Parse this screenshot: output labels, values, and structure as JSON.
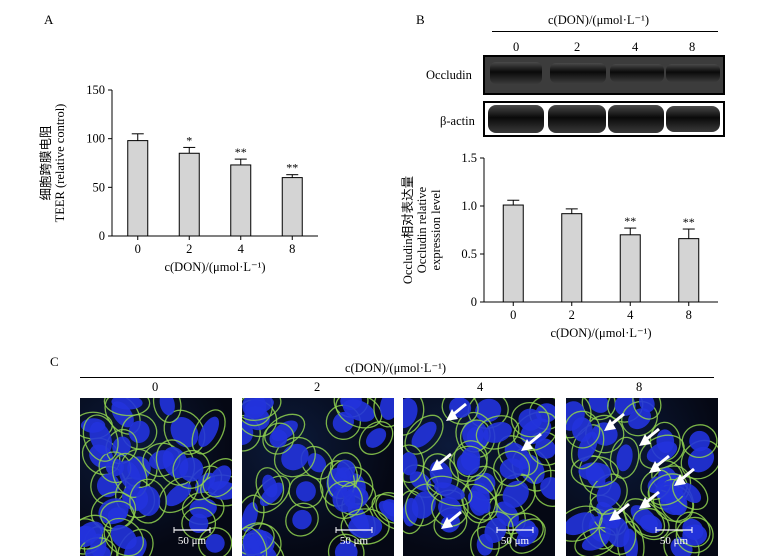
{
  "panel_a": {
    "letter": "A",
    "ylabel_cn": "细胞跨膜电阻",
    "ylabel_en": "TEER (relative control)",
    "xlabel": "c(DON)/(μmol·L⁻¹)"
  },
  "panel_b": {
    "letter": "B",
    "header": "c(DON)/(μmol·L⁻¹)",
    "doses": [
      "0",
      "2",
      "4",
      "8"
    ],
    "blot_rows": [
      "Occludin",
      "β-actin"
    ],
    "ylabel_cn": "Occludin相对表达量",
    "ylabel_en_1": "Occludin relative",
    "ylabel_en_2": "expression level",
    "xlabel": "c(DON)/(μmol·L⁻¹)"
  },
  "panel_c": {
    "letter": "C",
    "header": "c(DON)/(μmol·L⁻¹)",
    "doses": [
      "0",
      "2",
      "4",
      "8"
    ],
    "scale_bar": "50 μm"
  },
  "colors": {
    "bar_fill": "#d4d4d4",
    "axis": "#000000",
    "membrane": "#8fd14f",
    "nuclei": "#2233dd",
    "arrow": "#ffffff"
  },
  "chart_data": [
    {
      "type": "bar",
      "panel": "A",
      "categories": [
        "0",
        "2",
        "4",
        "8"
      ],
      "values": [
        98,
        85,
        73,
        60
      ],
      "errors": [
        7,
        6,
        6,
        3
      ],
      "annotations": [
        "",
        "*",
        "**",
        "**"
      ],
      "ylim": [
        0,
        150
      ],
      "yticks": [
        "0",
        "50",
        "100",
        "150"
      ],
      "xlabel": "c(DON)/(μmol·L⁻¹)",
      "ylabel": "细胞跨膜电阻 TEER (relative control)"
    },
    {
      "type": "bar",
      "panel": "B",
      "categories": [
        "0",
        "2",
        "4",
        "8"
      ],
      "values": [
        1.01,
        0.92,
        0.7,
        0.66
      ],
      "errors": [
        0.05,
        0.05,
        0.07,
        0.1
      ],
      "annotations": [
        "",
        "",
        "**",
        "**"
      ],
      "ylim": [
        0,
        1.5
      ],
      "yticks": [
        "0",
        "0.5",
        "1.0",
        "1.5"
      ],
      "xlabel": "c(DON)/(μmol·L⁻¹)",
      "ylabel": "Occludin相对表达量 Occludin relative expression level"
    }
  ]
}
